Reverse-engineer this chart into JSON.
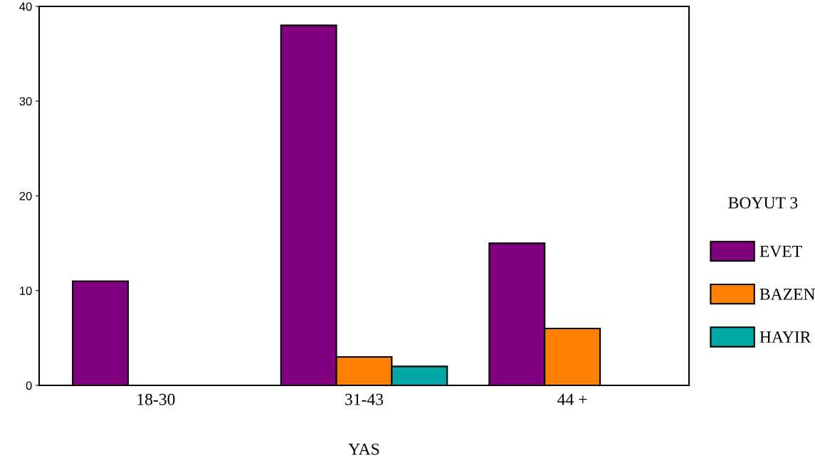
{
  "chart_data": {
    "type": "bar",
    "xlabel": "YAS",
    "legend_title": "BOYUT 3",
    "categories": [
      "18-30",
      "31-43",
      "44 +"
    ],
    "series": [
      {
        "name": "EVET",
        "color": "#800080",
        "values": [
          11,
          38,
          15
        ]
      },
      {
        "name": "BAZEN",
        "color": "#ff8000",
        "values": [
          null,
          3,
          6
        ]
      },
      {
        "name": "HAYIR",
        "color": "#00a8a8",
        "values": [
          null,
          2,
          null
        ]
      }
    ],
    "ylim": [
      0,
      40
    ],
    "yticks": [
      0,
      10,
      20,
      30,
      40
    ],
    "grid": false,
    "legend": "right"
  }
}
